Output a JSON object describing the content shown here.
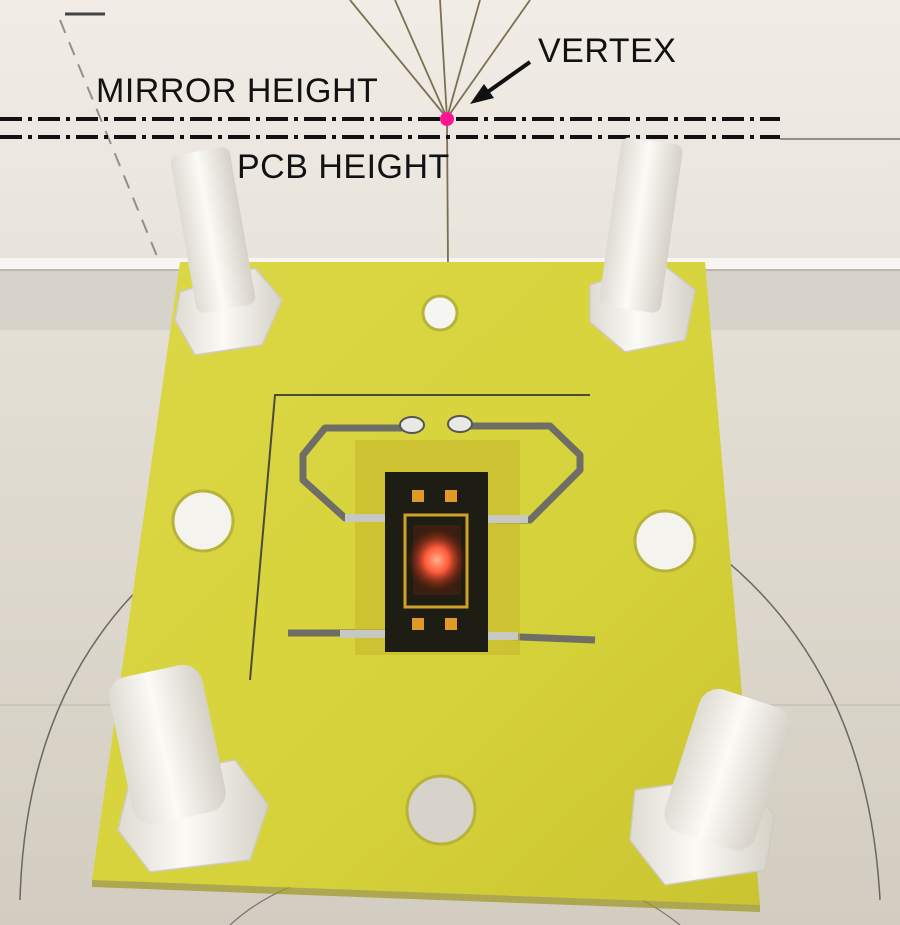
{
  "annotations": {
    "vertex_label": "VERTEX",
    "mirror_height_label": "MIRROR HEIGHT",
    "pcb_height_label": "PCB HEIGHT"
  },
  "colors": {
    "vertex_dot": "#ff1493",
    "pcb": "#d9d43a",
    "wall": "#eeeae2",
    "floor": "#e2ddd3",
    "standoff": "#f3f1ea",
    "laser_glow": "#ff5a3a"
  },
  "icons": [
    "vertex-arrow-icon"
  ]
}
